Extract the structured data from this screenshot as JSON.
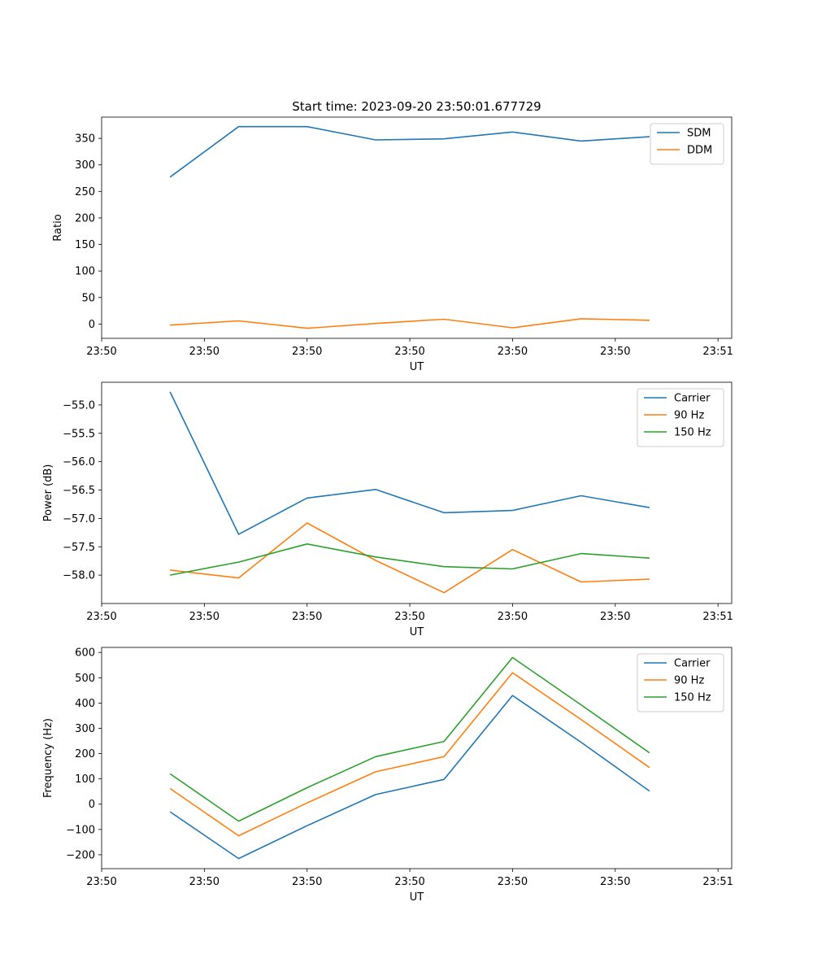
{
  "figure_title": "Start time: 2023-09-20 23:50:01.677729",
  "colors": {
    "blue": "#1f77b4",
    "orange": "#ff7f0e",
    "green": "#2ca02c"
  },
  "chart_data": [
    {
      "type": "line",
      "title": "Start time: 2023-09-20 23:50:01.677729",
      "xlabel": "UT",
      "ylabel": "Ratio",
      "x": [
        1,
        2,
        3,
        4,
        5,
        6,
        7,
        8
      ],
      "xlim": [
        0,
        9.2
      ],
      "xticks": [
        0,
        1.5,
        3,
        4.5,
        6,
        7.5,
        9
      ],
      "xtick_labels": [
        "23:50",
        "23:50",
        "23:50",
        "23:50",
        "23:50",
        "23:50",
        "23:51"
      ],
      "ylim": [
        -27,
        390
      ],
      "yticks": [
        0,
        50,
        100,
        150,
        200,
        250,
        300,
        350
      ],
      "ytick_labels": [
        "0",
        "50",
        "100",
        "150",
        "200",
        "250",
        "300",
        "350"
      ],
      "legend_position": "top-right",
      "series": [
        {
          "name": "SDM",
          "color": "#1f77b4",
          "values": [
            277,
            372,
            372,
            347,
            349,
            362,
            345,
            353
          ]
        },
        {
          "name": "DDM",
          "color": "#ff7f0e",
          "values": [
            -2,
            6,
            -8,
            1,
            9,
            -7,
            10,
            7
          ]
        }
      ]
    },
    {
      "type": "line",
      "title": "",
      "xlabel": "UT",
      "ylabel": "Power (dB)",
      "x": [
        1,
        2,
        3,
        4,
        5,
        6,
        7,
        8
      ],
      "xlim": [
        0,
        9.2
      ],
      "xticks": [
        0,
        1.5,
        3,
        4.5,
        6,
        7.5,
        9
      ],
      "xtick_labels": [
        "23:50",
        "23:50",
        "23:50",
        "23:50",
        "23:50",
        "23:50",
        "23:51"
      ],
      "ylim": [
        -58.5,
        -54.6
      ],
      "yticks": [
        -55.0,
        -55.5,
        -56.0,
        -56.5,
        -57.0,
        -57.5,
        -58.0
      ],
      "ytick_labels": [
        "−55.0",
        "−55.5",
        "−56.0",
        "−56.5",
        "−57.0",
        "−57.5",
        "−58.0"
      ],
      "legend_position": "top-right",
      "series": [
        {
          "name": "Carrier",
          "color": "#1f77b4",
          "values": [
            -54.77,
            -57.28,
            -56.64,
            -56.49,
            -56.9,
            -56.86,
            -56.6,
            -56.81
          ]
        },
        {
          "name": "90 Hz",
          "color": "#ff7f0e",
          "values": [
            -57.91,
            -58.05,
            -57.08,
            -57.74,
            -58.31,
            -57.55,
            -58.12,
            -58.07
          ]
        },
        {
          "name": "150 Hz",
          "color": "#2ca02c",
          "values": [
            -58.0,
            -57.77,
            -57.45,
            -57.68,
            -57.85,
            -57.89,
            -57.62,
            -57.7
          ]
        }
      ]
    },
    {
      "type": "line",
      "title": "",
      "xlabel": "UT",
      "ylabel": "Frequency (Hz)",
      "x": [
        1,
        2,
        3,
        4,
        5,
        6,
        7,
        8
      ],
      "xlim": [
        0,
        9.2
      ],
      "xticks": [
        0,
        1.5,
        3,
        4.5,
        6,
        7.5,
        9
      ],
      "xtick_labels": [
        "23:50",
        "23:50",
        "23:50",
        "23:50",
        "23:50",
        "23:50",
        "23:51"
      ],
      "ylim": [
        -255,
        620
      ],
      "yticks": [
        -200,
        -100,
        0,
        100,
        200,
        300,
        400,
        500,
        600
      ],
      "ytick_labels": [
        "−200",
        "−100",
        "0",
        "100",
        "200",
        "300",
        "400",
        "500",
        "600"
      ],
      "legend_position": "top-right",
      "series": [
        {
          "name": "Carrier",
          "color": "#1f77b4",
          "values": [
            -30,
            -215,
            -85,
            38,
            98,
            430,
            245,
            52
          ]
        },
        {
          "name": "90 Hz",
          "color": "#ff7f0e",
          "values": [
            62,
            -125,
            5,
            128,
            188,
            520,
            335,
            145
          ]
        },
        {
          "name": "150 Hz",
          "color": "#2ca02c",
          "values": [
            120,
            -67,
            65,
            188,
            248,
            580,
            393,
            203
          ]
        }
      ]
    }
  ]
}
